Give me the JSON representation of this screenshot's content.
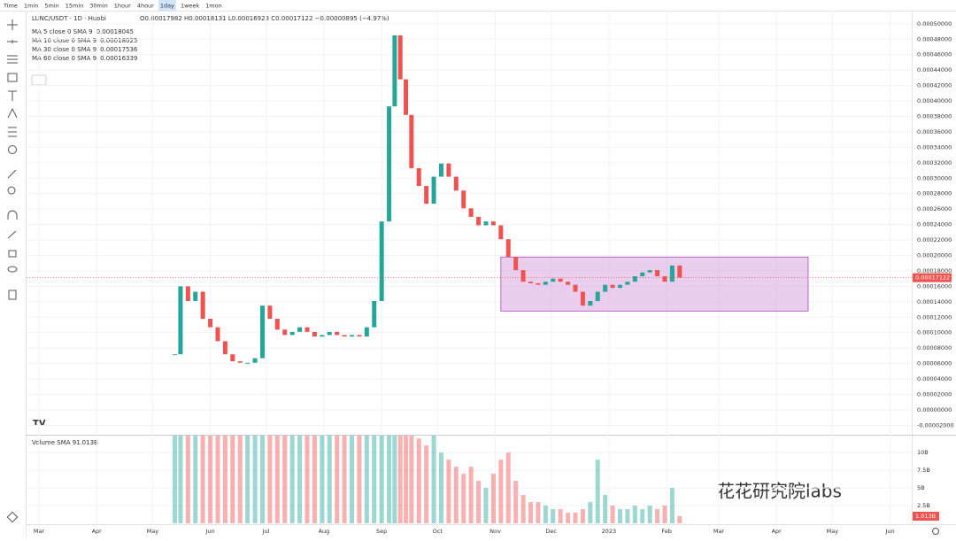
{
  "toolbar": {
    "intervals": [
      "Time",
      "1min",
      "5min",
      "15min",
      "30min",
      "1hour",
      "4hour",
      "1day",
      "1week",
      "1mon"
    ]
  },
  "legend": {
    "symbol": "LUNC/USDT · 1D · Huobi",
    "ohlc": "O0.00017982 H0.00018131 L0.00016923 C0.00017122 −0.00000895 (−4.97%)",
    "ma": [
      {
        "name": "MA 5 close 0 SMA 9",
        "value": "0.00018045",
        "color": "#e91e63"
      },
      {
        "name": "MA 10 close 0 SMA 9",
        "value": "0.00018025",
        "color": "#2962ff"
      },
      {
        "name": "MA 30 close 0 SMA 9",
        "value": "0.00017536",
        "color": "#00c853"
      },
      {
        "name": "MA 60 close 0 SMA 9",
        "value": "0.00016339",
        "color": "#9c27b0"
      }
    ],
    "volume": "Volume SMA 9",
    "volume_value": "1.013B"
  },
  "watermark": "花花研究院labs",
  "chart_data": {
    "type": "candlestick",
    "up_color": "#26a69a",
    "down_color": "#ef5350",
    "x": [
      73,
      76,
      80,
      84,
      88,
      92,
      96,
      100,
      104,
      108,
      112,
      116,
      120,
      124,
      128,
      132,
      136,
      140,
      144,
      148,
      152,
      156,
      160,
      164,
      168,
      172,
      176,
      180,
      184,
      188,
      191,
      194,
      197,
      200,
      204,
      208,
      212,
      216,
      220,
      224,
      228,
      232,
      236,
      240,
      244,
      248,
      252,
      256,
      260,
      264,
      268,
      272,
      276,
      280,
      284,
      288,
      292,
      296,
      300,
      304,
      308,
      312,
      316,
      320,
      324,
      328,
      332,
      336,
      340,
      344
    ],
    "close": [
      7.2e-05,
      0.00016,
      0.000141,
      0.000153,
      0.000118,
      0.000107,
      8.9e-05,
      7.2e-05,
      6.3e-05,
      6.1e-05,
      6.1e-05,
      6.7e-05,
      0.000135,
      0.000118,
      0.000104,
      9.7e-05,
      0.000101,
      0.000107,
      0.000101,
      9.5e-05,
      9.7e-05,
      0.000101,
      9.7e-05,
      9.5e-05,
      9.7e-05,
      9.5e-05,
      0.000107,
      0.000141,
      0.000244,
      0.000393,
      0.000485,
      0.000428,
      0.000382,
      0.000313,
      0.00029,
      0.000267,
      0.000302,
      0.000319,
      0.000302,
      0.000284,
      0.000261,
      0.00025,
      0.000239,
      0.000244,
      0.000239,
      0.000221,
      0.000198,
      0.000181,
      0.000166,
      0.000164,
      0.000162,
      0.000166,
      0.00017,
      0.000166,
      0.000162,
      0.000153,
      0.000135,
      0.000141,
      0.000153,
      0.000162,
      0.000158,
      0.000162,
      0.000166,
      0.000173,
      0.000178,
      0.000181,
      0.000173,
      0.000166,
      0.000187,
      0.00017122
    ],
    "volume": [
      13000000000,
      13000000000,
      13000000000,
      13000000000,
      13000000000,
      13000000000,
      13000000000,
      13000000000,
      13000000000,
      13000000000,
      13000000000,
      13000000000,
      13000000000,
      13000000000,
      13000000000,
      13000000000,
      13000000000,
      13000000000,
      13000000000,
      13000000000,
      13000000000,
      13000000000,
      13000000000,
      13000000000,
      13000000000,
      13000000000,
      13000000000,
      13000000000,
      13000000000,
      13000000000,
      13000000000,
      13000000000,
      13000000000,
      13000000000,
      12000000000,
      11000000000,
      13000000000,
      10000000000,
      9000000000,
      8000000000,
      7000000000,
      8000000000,
      6000000000,
      5000000000,
      7000000000,
      9000000000,
      10000000000,
      6000000000,
      4000000000,
      3000000000,
      3000000000,
      2500000000,
      2000000000,
      2000000000,
      1500000000,
      1500000000,
      2000000000,
      3000000000,
      9000000000,
      4000000000,
      2500000000,
      2000000000,
      2000000000,
      2500000000,
      2000000000,
      2500000000,
      2000000000,
      2500000000,
      5000000000,
      1013000000
    ],
    "xlim": [
      -6.65,
      468.6
    ],
    "xticks": [
      {
        "value": 0,
        "label": "Mar"
      },
      {
        "value": 31,
        "label": "Apr"
      },
      {
        "value": 61,
        "label": "May"
      },
      {
        "value": 92,
        "label": "Jun"
      },
      {
        "value": 122,
        "label": "Jul"
      },
      {
        "value": 153,
        "label": "Aug"
      },
      {
        "value": 184,
        "label": "Sep"
      },
      {
        "value": 214,
        "label": "Oct"
      },
      {
        "value": 245,
        "label": "Nov"
      },
      {
        "value": 275,
        "label": "Dec"
      },
      {
        "value": 306,
        "label": "2023"
      },
      {
        "value": 337,
        "label": "Feb"
      },
      {
        "value": 365,
        "label": "Mar"
      },
      {
        "value": 396,
        "label": "Apr"
      },
      {
        "value": 426,
        "label": "May"
      },
      {
        "value": 457,
        "label": "Jun"
      }
    ],
    "ylim": [
      -3.1e-05,
      0.000517
    ],
    "yticks": [
      {
        "value": 0.0005,
        "label": "0.00050000"
      },
      {
        "value": 0.00048,
        "label": "0.00048000"
      },
      {
        "value": 0.00046,
        "label": "0.00046000"
      },
      {
        "value": 0.00044,
        "label": "0.00044000"
      },
      {
        "value": 0.00042,
        "label": "0.00042000"
      },
      {
        "value": 0.0004,
        "label": "0.00040000"
      },
      {
        "value": 0.00038,
        "label": "0.00038000"
      },
      {
        "value": 0.00036,
        "label": "0.00036000"
      },
      {
        "value": 0.00034,
        "label": "0.00034000"
      },
      {
        "value": 0.00032,
        "label": "0.00032000"
      },
      {
        "value": 0.0003,
        "label": "0.00030000"
      },
      {
        "value": 0.00028,
        "label": "0.00028000"
      },
      {
        "value": 0.00026,
        "label": "0.00026000"
      },
      {
        "value": 0.00024,
        "label": "0.00024000"
      },
      {
        "value": 0.00022,
        "label": "0.00022000"
      },
      {
        "value": 0.0002,
        "label": "0.00020000"
      },
      {
        "value": 0.00018,
        "label": "0.00018000"
      },
      {
        "value": 0.00016,
        "label": "0.00016000"
      },
      {
        "value": 0.00014,
        "label": "0.00014000"
      },
      {
        "value": 0.00012,
        "label": "0.00012000"
      },
      {
        "value": 0.0001,
        "label": "0.00010000"
      },
      {
        "value": 8e-05,
        "label": "0.00008000"
      },
      {
        "value": 6e-05,
        "label": "0.00006000"
      },
      {
        "value": 4e-05,
        "label": "0.00004000"
      },
      {
        "value": 2e-05,
        "label": "0.00002000"
      },
      {
        "value": 0,
        "label": "0.00000000"
      },
      {
        "value": -2e-05,
        "label": "-0.00002000"
      }
    ],
    "vlim": [
      0,
      12400000000
    ],
    "vticks": [
      {
        "value": 2500000000,
        "label": "2.5B"
      },
      {
        "value": 5000000000,
        "label": "5B"
      },
      {
        "value": 7500000000,
        "label": "7.5B"
      },
      {
        "value": 10000000000,
        "label": "10B"
      }
    ],
    "last_price": 0.00017122,
    "rectangle": {
      "x": [
        248,
        413
      ],
      "y": [
        0.000128,
        0.000198
      ],
      "color": "#ce93d8"
    }
  }
}
